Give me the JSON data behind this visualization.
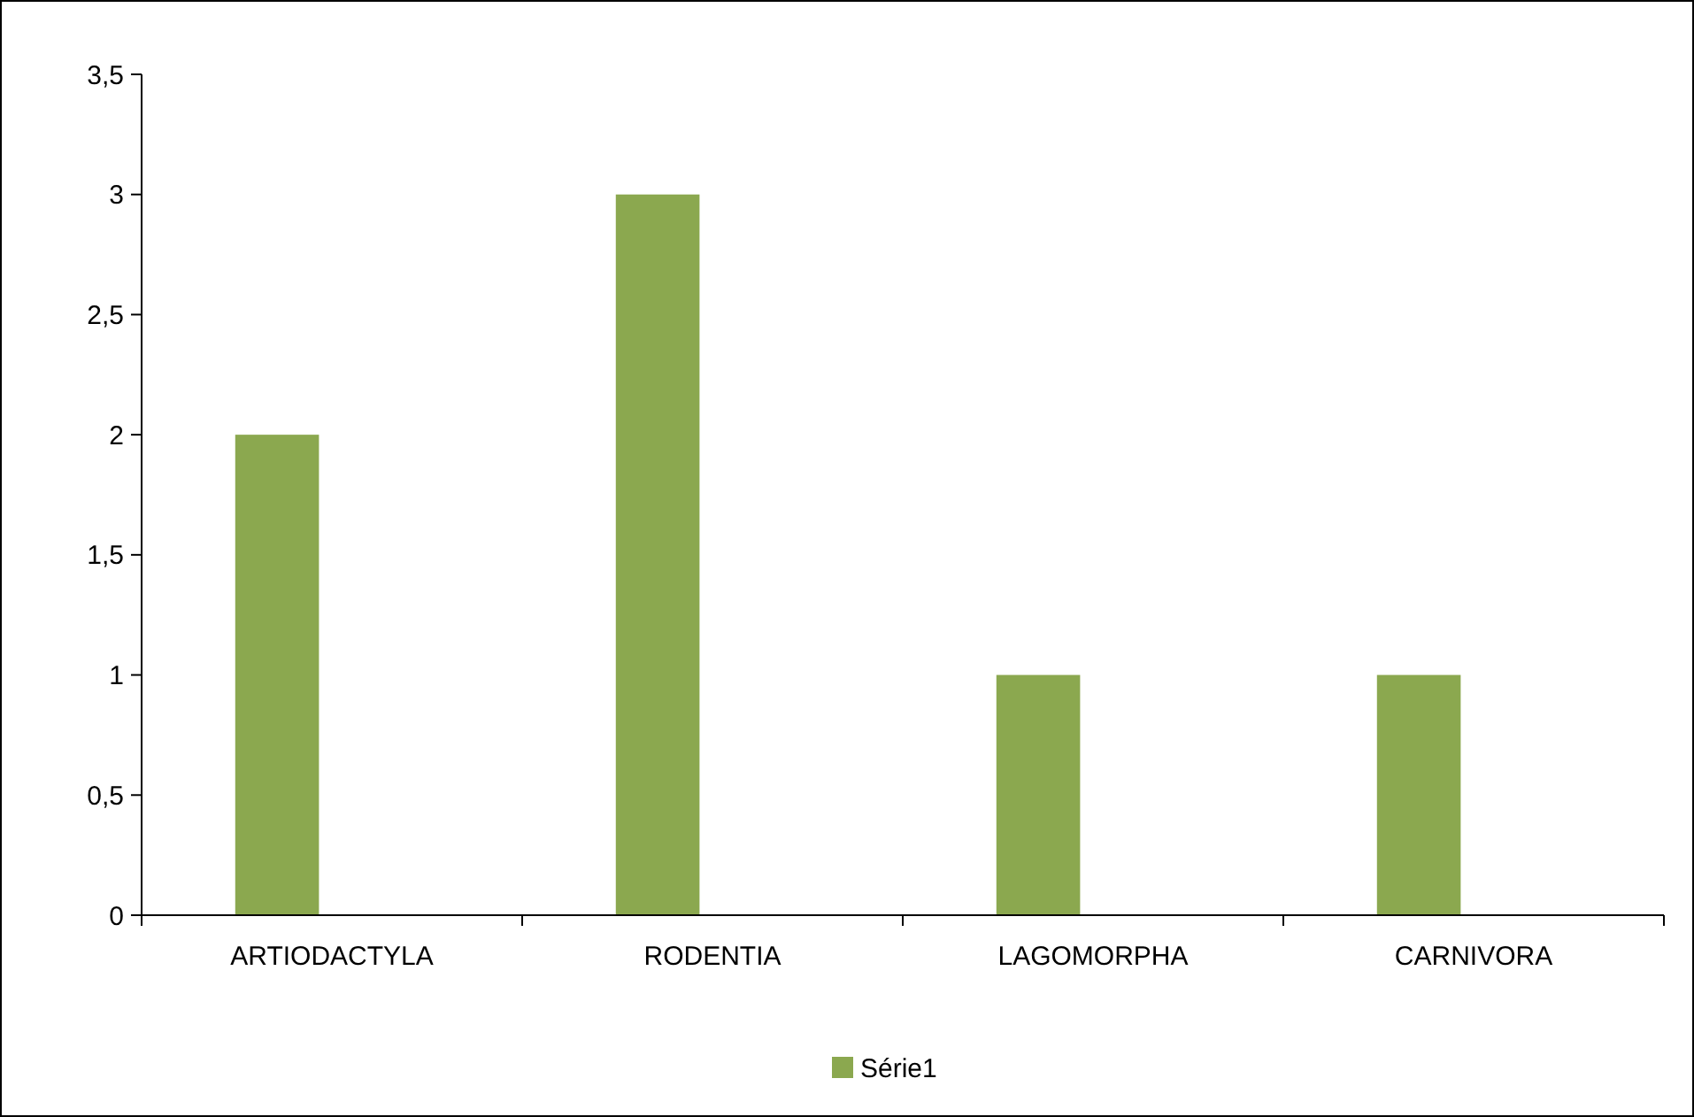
{
  "chart_data": {
    "type": "bar",
    "categories": [
      "ARTIODACTYLA",
      "RODENTIA",
      "LAGOMORPHA",
      "CARNIVORA"
    ],
    "series": [
      {
        "name": "Série1",
        "color": "#8ba84f",
        "values": [
          2,
          3,
          1,
          1
        ]
      }
    ],
    "ylim": [
      0,
      3.5
    ],
    "yticks": [
      0,
      {
        "value": 0.5,
        "label": "0,5"
      },
      1,
      {
        "value": 1.5,
        "label": "1,5"
      },
      2,
      {
        "value": 2.5,
        "label": "2,5"
      },
      3,
      {
        "value": 3.5,
        "label": "3,5"
      }
    ],
    "legend": "bottom"
  }
}
